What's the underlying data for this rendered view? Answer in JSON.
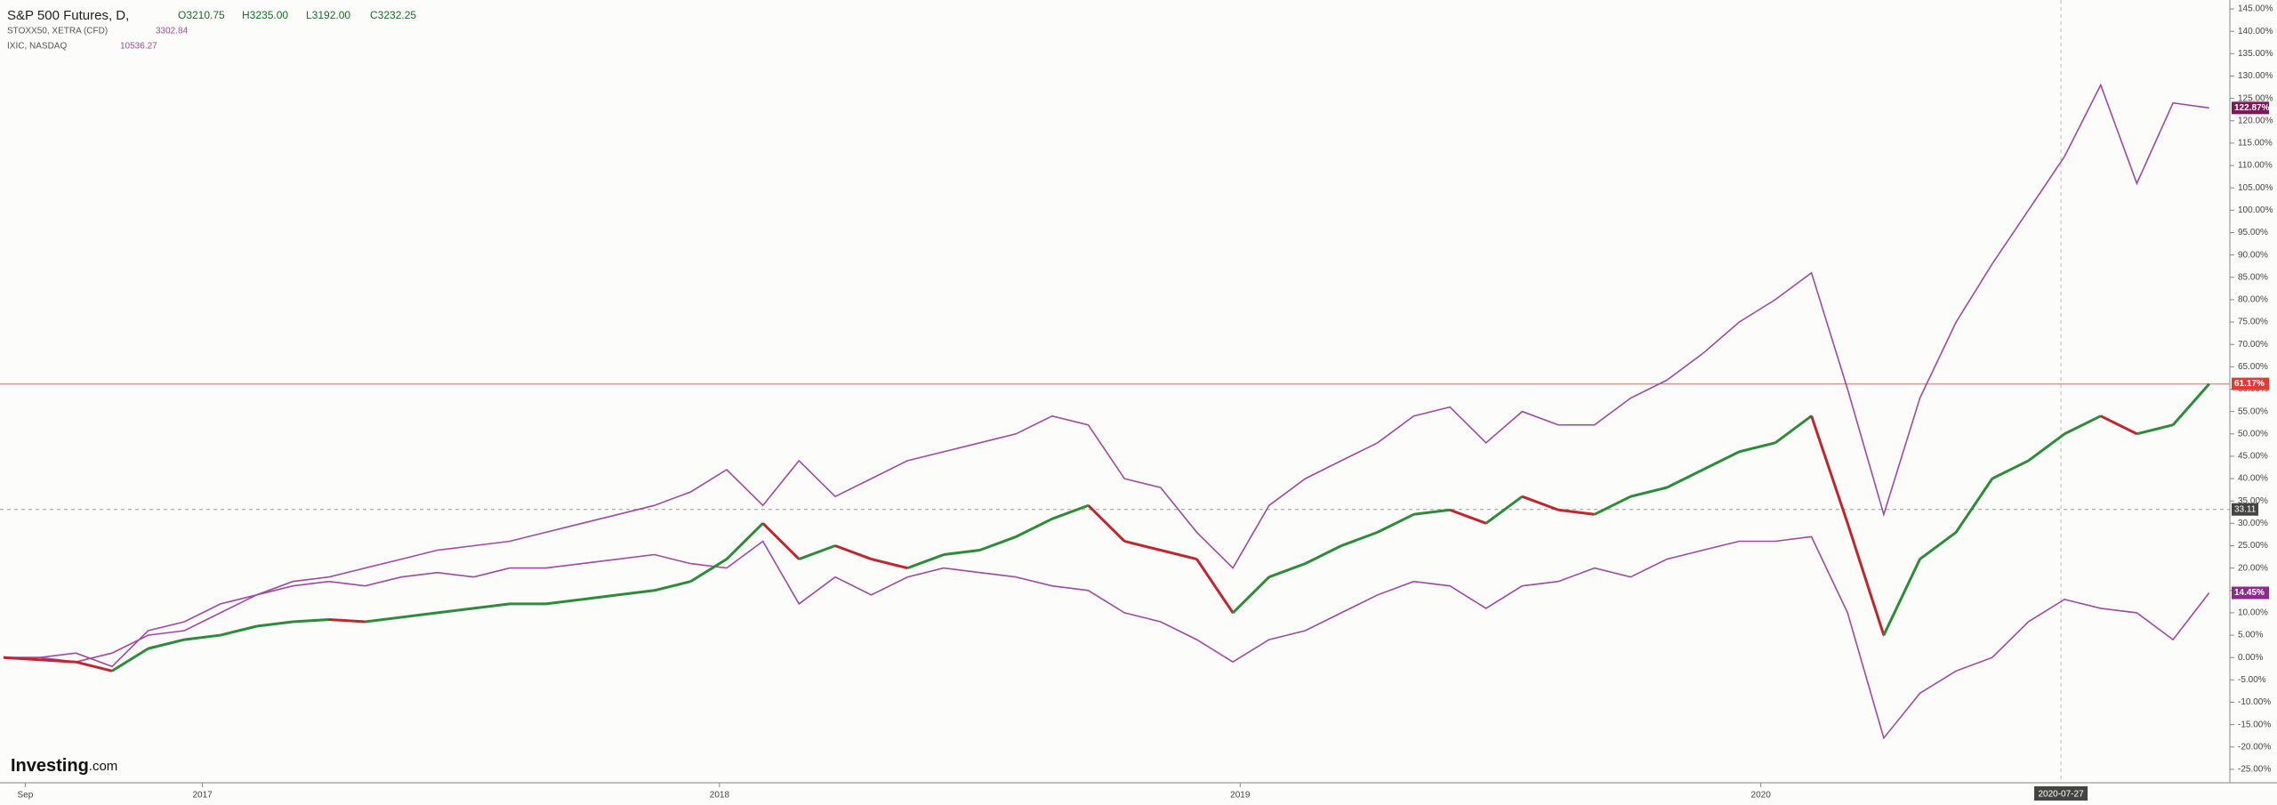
{
  "chart_data": {
    "type": "line",
    "series": [
      {
        "name": "S&P 500 Futures, D,",
        "color": "#222222",
        "up_color": "#2e8b3a",
        "down_color": "#c0262d",
        "quote": [
          "O3210.75",
          "H3235.00",
          "L3192.00",
          "C3232.25"
        ],
        "last_label": "61.17%",
        "values": [
          0,
          -0.5,
          -1,
          -3,
          2,
          4,
          5,
          7,
          8,
          8.5,
          8,
          9,
          10,
          11,
          12,
          12,
          13,
          14,
          15,
          17,
          22,
          30,
          22,
          25,
          22,
          20,
          23,
          24,
          27,
          31,
          34,
          26,
          24,
          22,
          10,
          18,
          21,
          25,
          28,
          32,
          33,
          30,
          36,
          33,
          32,
          36,
          38,
          42,
          46,
          48,
          54,
          30,
          5,
          22,
          28,
          40,
          44,
          50,
          54,
          50,
          52,
          61.17
        ]
      },
      {
        "name": "STOXX50, XETRA (CFD)",
        "color": "#a04aa0",
        "quote": [
          3302.84
        ],
        "last_label": "14.45%",
        "values": [
          0,
          0,
          -1,
          1,
          5,
          6,
          10,
          14,
          16,
          17,
          16,
          18,
          19,
          18,
          20,
          20,
          21,
          22,
          23,
          21,
          20,
          26,
          12,
          18,
          14,
          18,
          20,
          19,
          18,
          16,
          15,
          10,
          8,
          4,
          -1,
          4,
          6,
          10,
          14,
          17,
          16,
          11,
          16,
          17,
          20,
          18,
          22,
          24,
          26,
          26,
          27,
          10,
          -18,
          -8,
          -3,
          0,
          8,
          13,
          11,
          10,
          4,
          14.45
        ]
      },
      {
        "name": "IXIC, NASDAQ",
        "color": "#a04aa0",
        "quote": [
          10536.27
        ],
        "last_label": "122.87%",
        "values": [
          0,
          0,
          1,
          -2,
          6,
          8,
          12,
          14,
          17,
          18,
          20,
          22,
          24,
          25,
          26,
          28,
          30,
          32,
          34,
          37,
          42,
          34,
          44,
          36,
          40,
          44,
          46,
          48,
          50,
          54,
          52,
          40,
          38,
          28,
          20,
          34,
          40,
          44,
          48,
          54,
          56,
          48,
          55,
          52,
          52,
          58,
          62,
          68,
          75,
          80,
          86,
          60,
          32,
          58,
          75,
          88,
          100,
          112,
          128,
          106,
          124,
          122.87
        ]
      }
    ],
    "xlim": [
      0,
      61.4
    ],
    "xticks": [
      {
        "value": 0.6,
        "label": "Sep"
      },
      {
        "value": 5.5,
        "label": "2017"
      },
      {
        "value": 19.8,
        "label": "2018"
      },
      {
        "value": 34.2,
        "label": "2019"
      },
      {
        "value": 48.6,
        "label": "2020"
      }
    ],
    "ylim": [
      -28,
      147
    ],
    "yticks": [
      {
        "value": 145,
        "label": "145.00%"
      },
      {
        "value": 140,
        "label": "140.00%"
      },
      {
        "value": 135,
        "label": "135.00%"
      },
      {
        "value": 130,
        "label": "130.00%"
      },
      {
        "value": 125,
        "label": "125.00%"
      },
      {
        "value": 120,
        "label": "120.00%"
      },
      {
        "value": 115,
        "label": "115.00%"
      },
      {
        "value": 110,
        "label": "110.00%"
      },
      {
        "value": 105,
        "label": "105.00%"
      },
      {
        "value": 100,
        "label": "100.00%"
      },
      {
        "value": 95,
        "label": "95.00%"
      },
      {
        "value": 90,
        "label": "90.00%"
      },
      {
        "value": 85,
        "label": "85.00%"
      },
      {
        "value": 80,
        "label": "80.00%"
      },
      {
        "value": 75,
        "label": "75.00%"
      },
      {
        "value": 70,
        "label": "70.00%"
      },
      {
        "value": 65,
        "label": "65.00%"
      },
      {
        "value": 60,
        "label": "60.00%"
      },
      {
        "value": 55,
        "label": "55.00%"
      },
      {
        "value": 50,
        "label": "50.00%"
      },
      {
        "value": 45,
        "label": "45.00%"
      },
      {
        "value": 40,
        "label": "40.00%"
      },
      {
        "value": 35,
        "label": "35.00%"
      },
      {
        "value": 30,
        "label": "30.00%"
      },
      {
        "value": 25,
        "label": "25.00%"
      },
      {
        "value": 20,
        "label": "20.00%"
      },
      {
        "value": 15,
        "label": "15.00%"
      },
      {
        "value": 10,
        "label": "10.00%"
      },
      {
        "value": 5,
        "label": "5.00%"
      },
      {
        "value": 0,
        "label": "0.00%"
      },
      {
        "value": -5,
        "label": "-5.00%"
      },
      {
        "value": -10,
        "label": "-10.00%"
      },
      {
        "value": -15,
        "label": "-15.00%"
      },
      {
        "value": -20,
        "label": "-20.00%"
      },
      {
        "value": -25,
        "label": "-25.00%"
      }
    ],
    "price_line": 61.17,
    "crosshair": {
      "y": 33.11,
      "x": {
        "value": 56.9,
        "label": "2020-07-27"
      }
    },
    "logo": [
      "Investing",
      ".com"
    ]
  }
}
